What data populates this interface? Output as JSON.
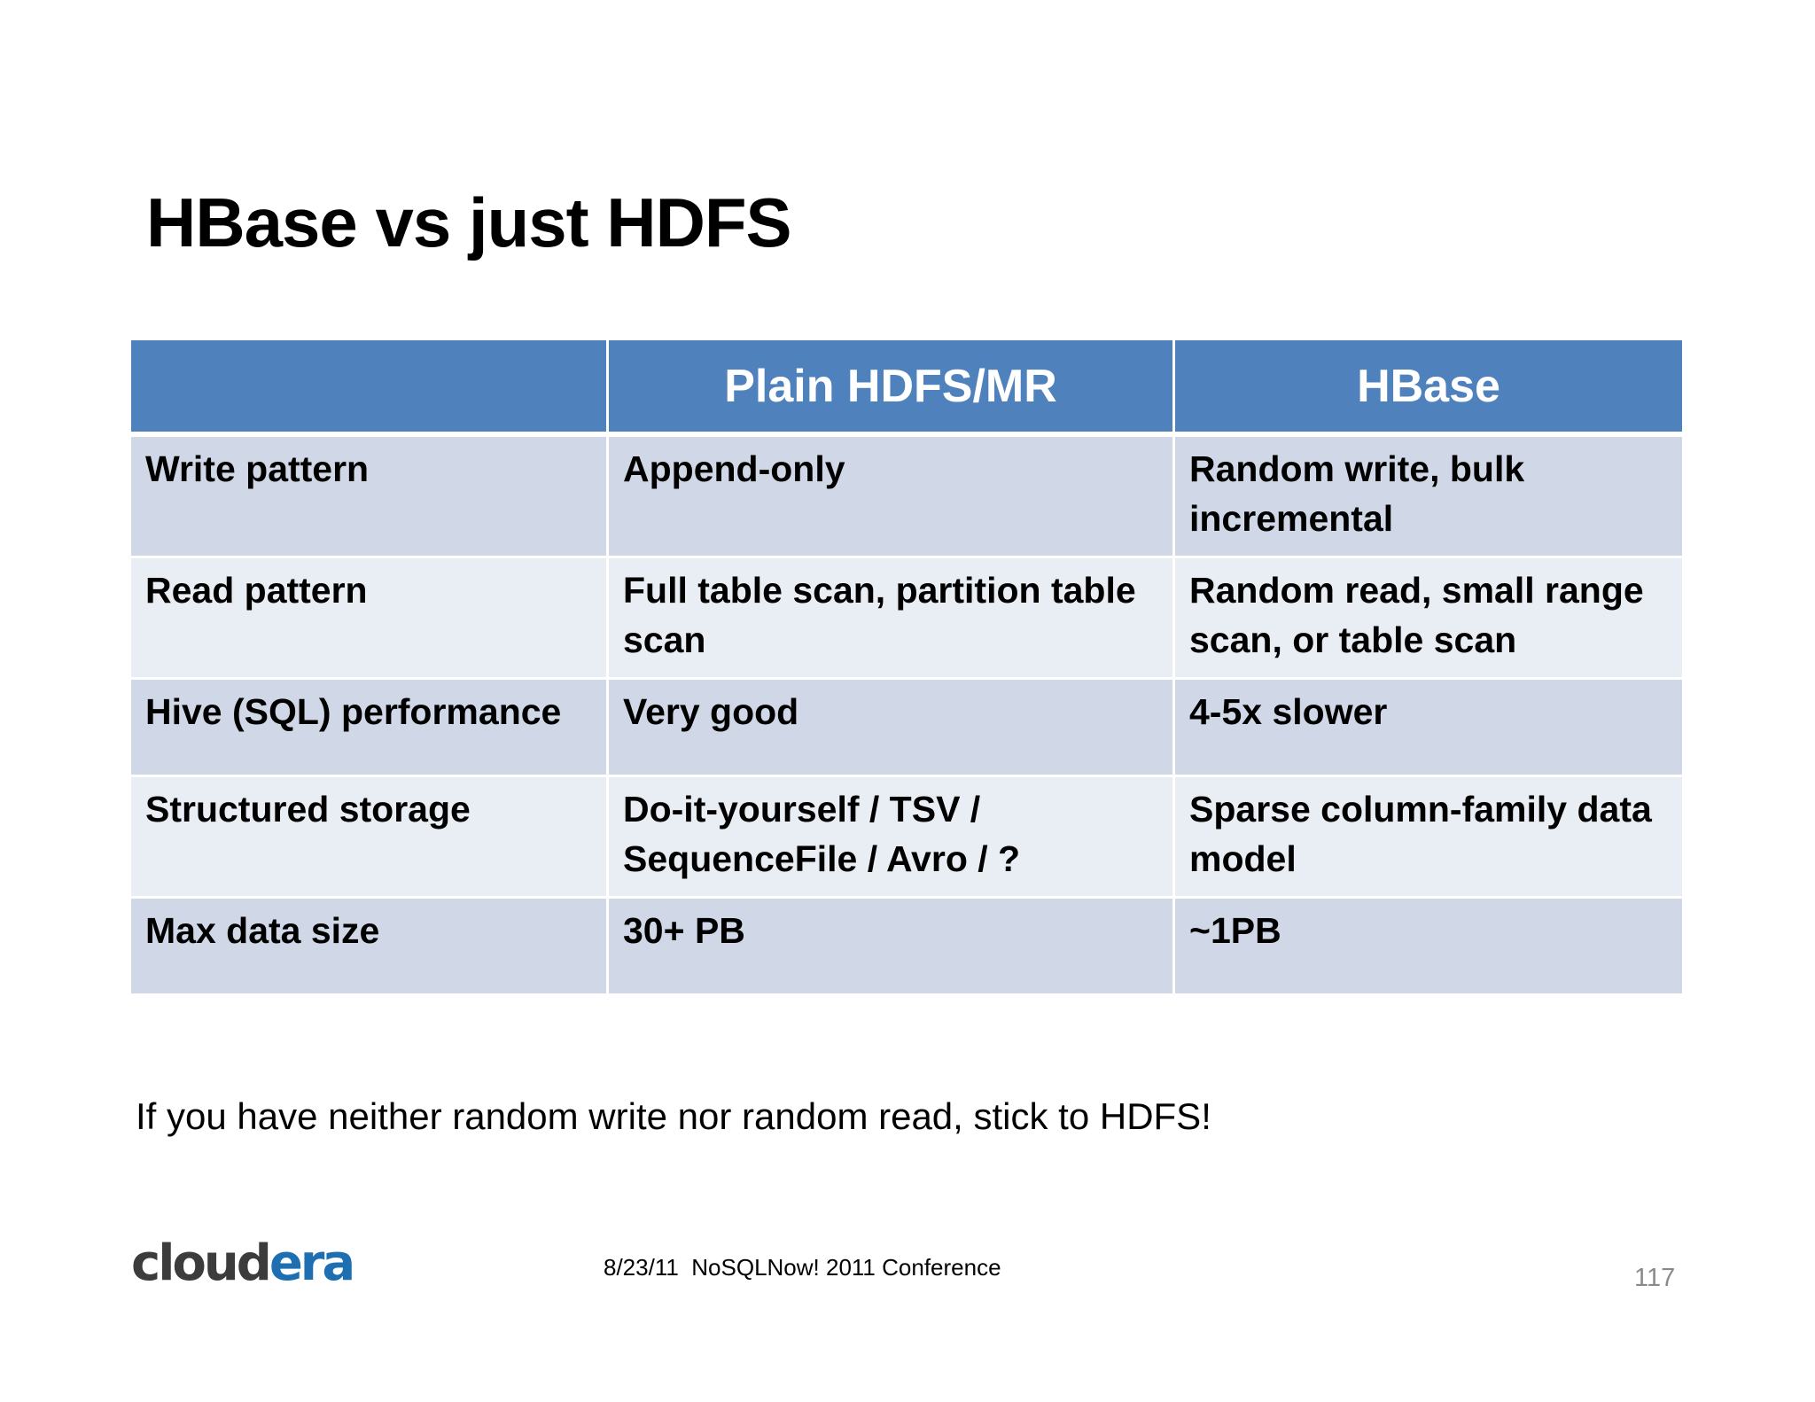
{
  "slide": {
    "title": "HBase vs just HDFS",
    "note": "If you have neither random write nor random read, stick to HDFS!"
  },
  "table": {
    "headers": [
      "",
      "Plain HDFS/MR",
      "HBase"
    ],
    "rows": [
      [
        "Write pattern",
        "Append-only",
        "Random write, bulk incremental"
      ],
      [
        "Read pattern",
        "Full table scan, partition table scan",
        "Random read, small range scan, or table scan"
      ],
      [
        "Hive (SQL) performance",
        "Very good",
        "4-5x slower"
      ],
      [
        "Structured storage",
        "Do-it-yourself / TSV / SequenceFile / Avro / ?",
        "Sparse column-family data model"
      ],
      [
        "Max data size",
        "30+ PB",
        "~1PB"
      ]
    ]
  },
  "footer": {
    "logo": "cloudera",
    "logo_part1": "cloud",
    "logo_part2": "era",
    "text": "8/23/11  NoSQLNow! 2011 Conference",
    "page_number": "117"
  },
  "colors": {
    "header_bg": "#4f81bd",
    "row_odd_bg": "#d0d8e8",
    "row_even_bg": "#e9edf4",
    "logo_accent": "#1d6fb1"
  }
}
